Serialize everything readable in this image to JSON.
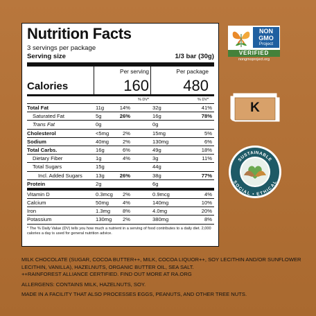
{
  "label": {
    "title": "Nutrition Facts",
    "servings": "3 servings per package",
    "serving_size_label": "Serving size",
    "serving_size_value": "1/3 bar (30g)",
    "col1_head": "Per serving",
    "col2_head": "Per package",
    "calories_label": "Calories",
    "calories_per_serving": "160",
    "calories_per_package": "480",
    "dv_head": "% DV*",
    "rows": [
      {
        "name": "Total Fat",
        "a1": "11g",
        "p1": "14%",
        "a2": "32g",
        "p2": "41%"
      },
      {
        "name": "Saturated Fat",
        "a1": "5g",
        "p1": "26%",
        "a2": "16g",
        "p2": "78%"
      },
      {
        "name": "Trans Fat",
        "a1": "0g",
        "p1": "",
        "a2": "0g",
        "p2": ""
      },
      {
        "name": "Cholesterol",
        "a1": "<5mg",
        "p1": "2%",
        "a2": "15mg",
        "p2": "5%"
      },
      {
        "name": "Sodium",
        "a1": "40mg",
        "p1": "2%",
        "a2": "130mg",
        "p2": "6%"
      },
      {
        "name": "Total Carbs.",
        "a1": "16g",
        "p1": "6%",
        "a2": "49g",
        "p2": "18%"
      },
      {
        "name": "Dietary Fiber",
        "a1": "1g",
        "p1": "4%",
        "a2": "3g",
        "p2": "11%"
      },
      {
        "name": "Total Sugars",
        "a1": "15g",
        "p1": "",
        "a2": "44g",
        "p2": ""
      },
      {
        "name": "Incl. Added Sugars",
        "a1": "13g",
        "p1": "26%",
        "a2": "38g",
        "p2": "77%"
      },
      {
        "name": "Protein",
        "a1": "2g",
        "p1": "",
        "a2": "6g",
        "p2": ""
      },
      {
        "name": "Vitamin D",
        "a1": "0.3mcg",
        "p1": "2%",
        "a2": "0.9mcg",
        "p2": "4%"
      },
      {
        "name": "Calcium",
        "a1": "50mg",
        "p1": "4%",
        "a2": "140mg",
        "p2": "10%"
      },
      {
        "name": "Iron",
        "a1": "1.3mg",
        "p1": "8%",
        "a2": "4.0mg",
        "p2": "20%"
      },
      {
        "name": "Potassium",
        "a1": "130mg",
        "p1": "2%",
        "a2": "380mg",
        "p2": "8%"
      }
    ],
    "footnote": "* The % Daily Value (DV) tells you how much a nutrient in a serving of food contributes to a daily diet. 2,000 calories a day is used for general nutrition advice."
  },
  "badges": {
    "nongmo_line1": "NON",
    "nongmo_line2": "GMO",
    "nongmo_line3": "Project",
    "nongmo_verified": "VERIFIED",
    "nongmo_url": "nongmoproject.org",
    "kosher_letter": "K",
    "ra_top": "SUSTAINABLE",
    "ra_bottom": "SOCIAL • ETHICAL"
  },
  "ingredients": {
    "line1": "MILK CHOCOLATE (SUGAR, COCOA BUTTER++, MILK, COCOA LIQUOR++, SOY LECITHIN AND/OR SUNFLOWER LECITHIN, VANILLA), HAZELNUTS, ORGANIC BUTTER OIL, SEA SALT.",
    "line2": "++RAINFOREST ALLIANCE CERTIFIED. FIND OUT MORE AT RA.ORG",
    "allergens": "ALLERGENS: CONTAINS MILK, HAZELNUTS, SOY.",
    "facility": "MADE IN A FACILITY THAT ALSO PROCESSES EGGS, PEANUTS, AND OTHER TREE NUTS."
  },
  "colors": {
    "background": "#b4733a",
    "nongmo_blue": "#1f5fa0",
    "nongmo_green": "#44813a",
    "ra_teal": "#1e5a66"
  }
}
